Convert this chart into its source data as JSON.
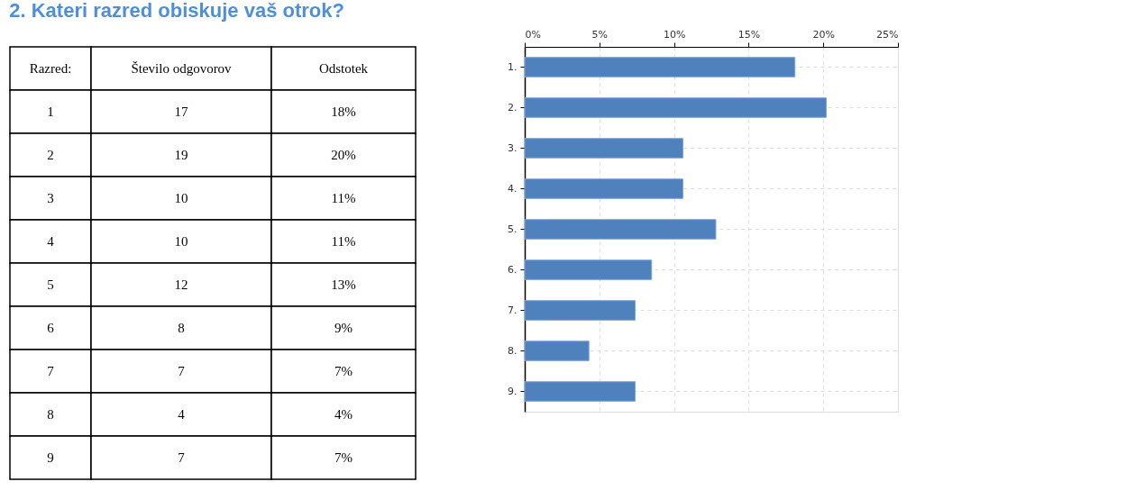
{
  "chart_data": {
    "type": "bar",
    "orientation": "horizontal",
    "title": "2. Kateri razred obiskuje vaš otrok?",
    "categories": [
      "1.",
      "2.",
      "3.",
      "4.",
      "5.",
      "6.",
      "7.",
      "8.",
      "9."
    ],
    "values": [
      18.1,
      20.2,
      10.6,
      10.6,
      12.8,
      8.5,
      7.4,
      4.3,
      7.4
    ],
    "color": "#4f81bd",
    "annotations": [
      "Razred:",
      "Število odgovorov",
      "Odstotek",
      "1",
      "17",
      "18%",
      "2",
      "19",
      "20%",
      "3",
      "10",
      "11%",
      "4",
      "10",
      "11%",
      "5",
      "12",
      "13%",
      "6",
      "8",
      "9%",
      "7",
      "7",
      "7%",
      "8",
      "4",
      "4%",
      "9",
      "7",
      "7%"
    ],
    "xlim": [
      0,
      25
    ],
    "xticks": [
      {
        "value": 0,
        "label": "0%"
      },
      {
        "value": 5,
        "label": "5%"
      },
      {
        "value": 10,
        "label": "10%"
      },
      {
        "value": 15,
        "label": "15%"
      },
      {
        "value": 20,
        "label": "20%"
      },
      {
        "value": 25,
        "label": "25%"
      }
    ],
    "grid": true
  }
}
